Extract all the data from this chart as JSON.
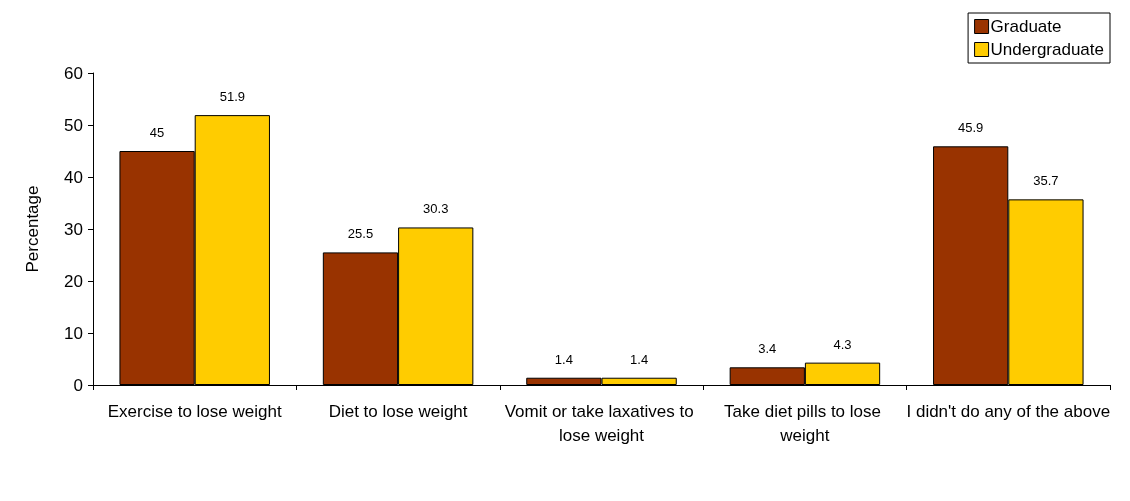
{
  "chart_data": {
    "type": "bar",
    "ylabel": "Percentage",
    "categories": [
      "Exercise to lose weight",
      "Diet to lose weight",
      "Vomit or take laxatives to lose weight",
      "Take diet pills to lose weight",
      "I didn't do any of the above"
    ],
    "series": [
      {
        "name": "Graduate",
        "color": "#993300",
        "values": [
          45,
          25.5,
          1.4,
          3.4,
          45.9
        ]
      },
      {
        "name": "Undergraduate",
        "color": "#ffcc00",
        "values": [
          51.9,
          30.3,
          1.4,
          4.3,
          35.7
        ]
      }
    ],
    "ylim": [
      0,
      60
    ],
    "yticks": [
      0,
      10,
      20,
      30,
      40,
      50,
      60
    ],
    "data_labels": true,
    "legend": "top right"
  }
}
